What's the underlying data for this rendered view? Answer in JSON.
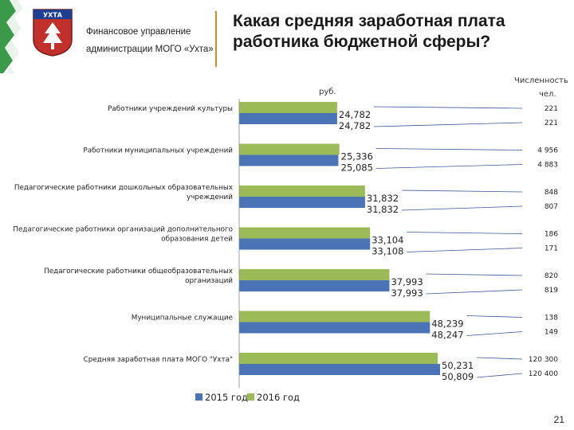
{
  "header": {
    "org_line1": "Финансовое управление",
    "org_line2": "администрации МОГО «Ухта»",
    "emblem_text": "УХТА",
    "title_line1": "Какая средняя заработная плата",
    "title_line2": "работника бюджетной сферы?"
  },
  "labels": {
    "unit": "руб.",
    "count_head_1": "Численность",
    "count_head_2": "чел."
  },
  "page_number": "21",
  "colors": {
    "series_2015": "#4a74b5",
    "series_2016": "#9bbb59",
    "divider": "#d08a2a",
    "leader_line": "#3a5a95",
    "band_green": "#3a9a4a"
  },
  "chart_data": {
    "type": "bar",
    "orientation": "horizontal",
    "categories": [
      "Работники учреждений культуры",
      "Работники муниципальных учреждений",
      "Педагогические работники дошкольных образовательных учреждений",
      "Педагогические работники организаций дополнительного образования детей",
      "Педагогические работники общеобразовательных организаций",
      "Муниципальные служащие",
      "Средняя заработная плата МОГО \"Ухта\""
    ],
    "category_lines": [
      [
        "Работники учреждений культуры"
      ],
      [
        "Работники муниципальных учреждений"
      ],
      [
        "Педагогические работники дошкольных образовательных",
        "учреждений"
      ],
      [
        "Педагогические работники организаций дополнительного",
        "образования детей"
      ],
      [
        "Педагогические работники общеобразовательных",
        "организаций"
      ],
      [
        "Муниципальные служащие"
      ],
      [
        "Средняя заработная плата МОГО \"Ухта\""
      ]
    ],
    "series": [
      {
        "name": "2015 год",
        "values": [
          24782,
          25085,
          31832,
          33108,
          37993,
          48247,
          50809
        ],
        "value_labels": [
          "24,782",
          "25,085",
          "31,832",
          "33,108",
          "37,993",
          "48,247",
          "50,809"
        ],
        "counts": [
          "221",
          "4 883",
          "807",
          "171",
          "819",
          "149",
          "120 400"
        ]
      },
      {
        "name": "2016 год",
        "values": [
          24782,
          25336,
          31832,
          33104,
          37993,
          48239,
          50231
        ],
        "value_labels": [
          "24,782",
          "25,336",
          "31,832",
          "33,104",
          "37,993",
          "48,239",
          "50,231"
        ],
        "counts": [
          "221",
          "4 956",
          "848",
          "186",
          "820",
          "138",
          "120 300"
        ]
      }
    ],
    "legend": [
      "2015 год",
      "2016 год"
    ],
    "legend_position": "bottom",
    "xlim": [
      0,
      70000
    ],
    "grid": false
  }
}
